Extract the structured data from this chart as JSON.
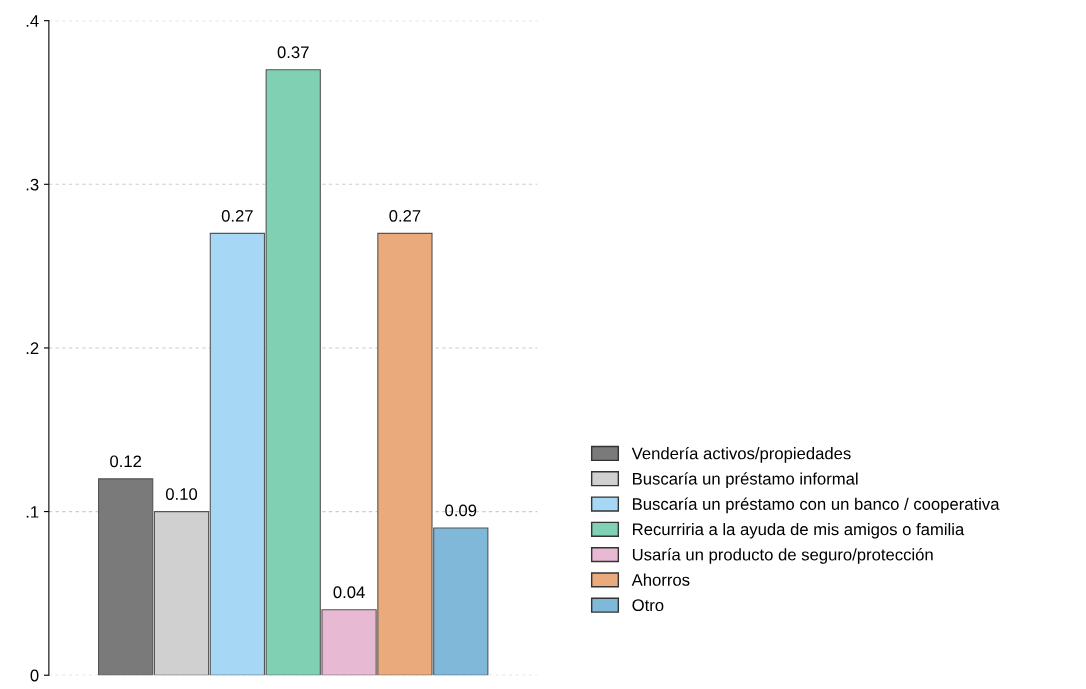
{
  "chart_data": {
    "type": "bar",
    "categories": [
      null
    ],
    "series": [
      {
        "name": "Vendería activos/propiedades",
        "color": "#7a7a7a",
        "values": [
          0.12
        ],
        "value_labels": [
          "0.12"
        ]
      },
      {
        "name": "Buscaría un préstamo informal",
        "color": "#d0d0d0",
        "values": [
          0.1
        ],
        "value_labels": [
          "0.10"
        ]
      },
      {
        "name": "Buscaría un préstamo con un banco / cooperativa",
        "color": "#a6d8f5",
        "values": [
          0.27
        ],
        "value_labels": [
          "0.27"
        ]
      },
      {
        "name": "Recurriria a la ayuda de mis amigos o familia",
        "color": "#80d0b4",
        "values": [
          0.37
        ],
        "value_labels": [
          "0.37"
        ]
      },
      {
        "name": "Usaría un producto de seguro/protección",
        "color": "#e8b9d2",
        "values": [
          0.04
        ],
        "value_labels": [
          "0.04"
        ]
      },
      {
        "name": "Ahorros",
        "color": "#eaaa7c",
        "values": [
          0.27
        ],
        "value_labels": [
          "0.27"
        ]
      },
      {
        "name": "Otro",
        "color": "#80b8da",
        "values": [
          0.09
        ],
        "value_labels": [
          "0.09"
        ]
      }
    ],
    "ylim": [
      0,
      0.4
    ],
    "yticks": [
      0,
      {
        "value": 0.1,
        "label": ".1"
      },
      {
        "value": 0.2,
        "label": ".2"
      },
      {
        "value": 0.3,
        "label": ".3"
      },
      {
        "value": 0.4,
        "label": ".4"
      }
    ],
    "grid": "y",
    "legend": "right"
  }
}
